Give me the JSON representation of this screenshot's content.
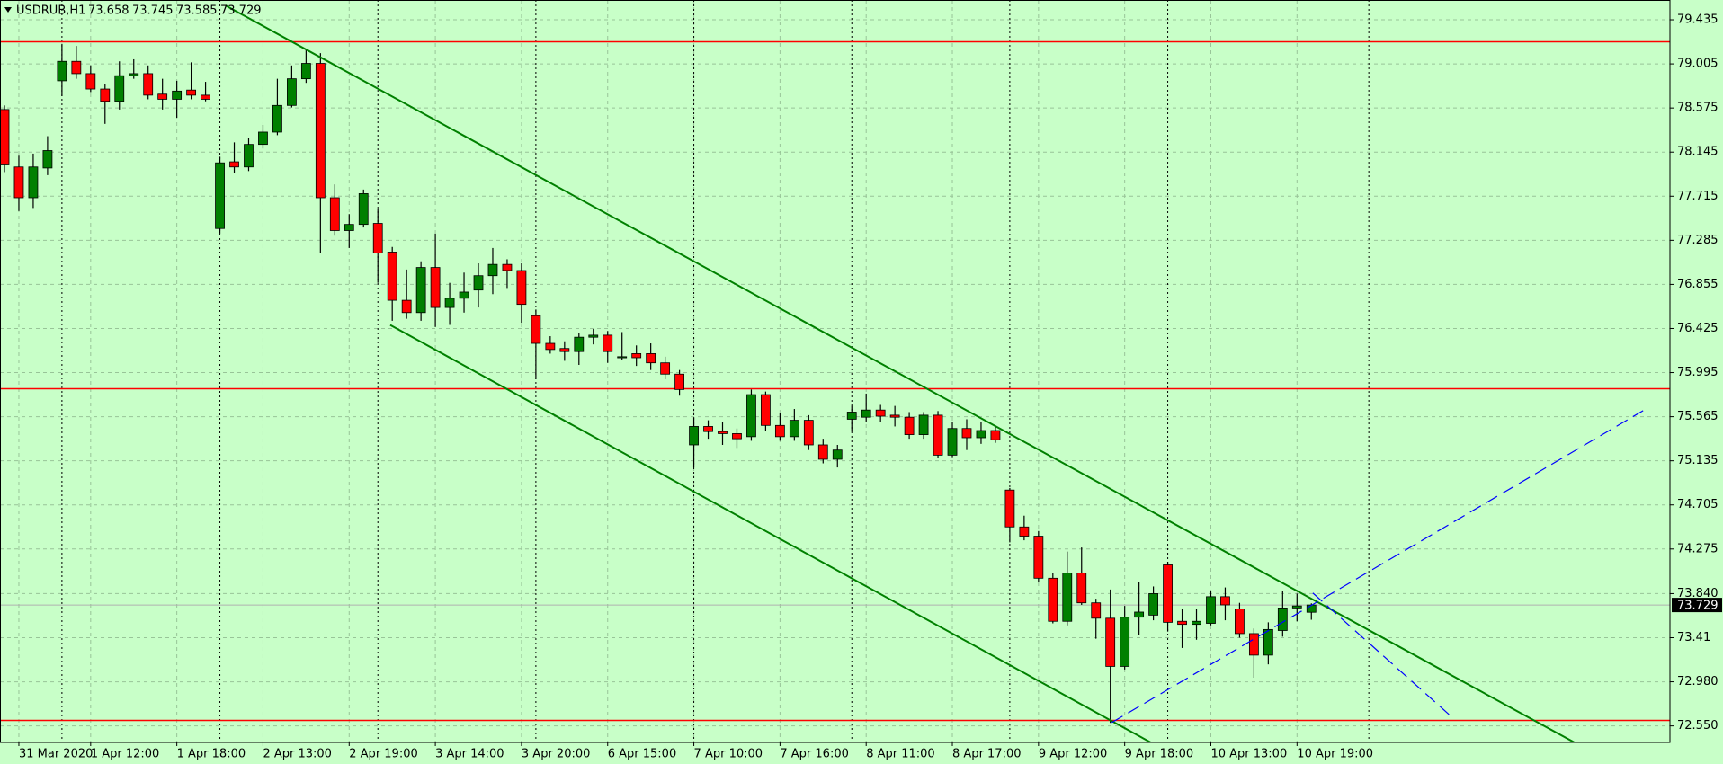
{
  "chart_data": {
    "type": "candlestick",
    "title": "USDRUB,H1",
    "categories": [
      null,
      "31 Mar 2020",
      null,
      null,
      null,
      null,
      "1 Apr 12:00",
      null,
      null,
      null,
      null,
      null,
      "1 Apr 18:00",
      null,
      null,
      null,
      null,
      null,
      "2 Apr 13:00",
      null,
      null,
      null,
      null,
      null,
      "2 Apr 19:00",
      null,
      null,
      null,
      null,
      null,
      "3 Apr 14:00",
      null,
      null,
      null,
      null,
      null,
      "3 Apr 20:00",
      null,
      null,
      null,
      null,
      null,
      "6 Apr 15:00",
      null,
      null,
      null,
      null,
      null,
      "7 Apr 10:00",
      null,
      null,
      null,
      null,
      null,
      "7 Apr 16:00",
      null,
      null,
      null,
      null,
      null,
      "8 Apr 11:00",
      null,
      null,
      null,
      null,
      null,
      "8 Apr 17:00",
      null,
      null,
      null,
      null,
      null,
      "9 Apr 12:00",
      null,
      null,
      null,
      null,
      null,
      "9 Apr 18:00",
      null,
      null,
      null,
      null,
      null,
      "10 Apr 13:00",
      null,
      null,
      null,
      null,
      null,
      "10 Apr 19:00",
      null
    ],
    "open": [
      78.56,
      78.0,
      77.7,
      77.99,
      78.84,
      79.03,
      78.91,
      78.76,
      78.64,
      78.89,
      78.91,
      78.71,
      78.66,
      78.75,
      78.7,
      77.4,
      78.05,
      78.0,
      78.22,
      78.34,
      78.6,
      78.86,
      79.01,
      77.7,
      77.38,
      77.44,
      77.45,
      77.17,
      76.7,
      76.58,
      77.02,
      76.63,
      76.72,
      76.8,
      76.94,
      77.05,
      76.99,
      76.55,
      76.28,
      76.23,
      76.2,
      76.34,
      76.36,
      76.14,
      76.18,
      76.18,
      76.09,
      75.98,
      75.29,
      75.47,
      75.42,
      75.4,
      75.37,
      75.78,
      75.48,
      75.37,
      75.53,
      75.29,
      75.15,
      75.54,
      75.56,
      75.63,
      75.58,
      75.56,
      75.39,
      75.58,
      75.19,
      75.45,
      75.36,
      75.43,
      74.85,
      74.49,
      74.4,
      73.99,
      73.57,
      74.04,
      73.75,
      73.6,
      73.13,
      73.61,
      73.63,
      74.12,
      73.57,
      73.54,
      73.55,
      73.81,
      73.69,
      73.45,
      73.24,
      73.48,
      73.7,
      73.658
    ],
    "high": [
      78.6,
      78.11,
      78.13,
      78.3,
      79.2,
      79.18,
      78.99,
      78.81,
      79.03,
      79.05,
      78.99,
      78.86,
      78.84,
      79.02,
      78.83,
      78.1,
      78.24,
      78.28,
      78.41,
      78.86,
      78.99,
      79.15,
      79.11,
      77.83,
      77.54,
      77.78,
      77.59,
      77.22,
      77.0,
      77.08,
      77.35,
      76.87,
      76.97,
      77.06,
      77.21,
      77.1,
      77.06,
      76.61,
      76.35,
      76.3,
      76.38,
      76.42,
      76.4,
      76.39,
      76.26,
      76.28,
      76.15,
      76.02,
      75.56,
      75.53,
      75.51,
      75.45,
      75.83,
      75.81,
      75.6,
      75.64,
      75.58,
      75.35,
      75.29,
      75.67,
      75.79,
      75.68,
      75.67,
      75.61,
      75.61,
      75.62,
      75.51,
      75.54,
      75.51,
      75.48,
      74.87,
      74.6,
      74.45,
      74.04,
      74.25,
      74.29,
      73.79,
      73.88,
      73.72,
      73.95,
      73.91,
      74.15,
      73.69,
      73.69,
      73.87,
      73.9,
      73.75,
      73.5,
      73.56,
      73.87,
      73.84,
      73.745
    ],
    "low": [
      77.95,
      77.57,
      77.6,
      77.92,
      78.69,
      78.86,
      78.73,
      78.42,
      78.56,
      78.86,
      78.66,
      78.56,
      78.48,
      78.66,
      78.64,
      77.35,
      77.94,
      77.96,
      78.18,
      78.31,
      78.58,
      78.82,
      77.16,
      77.33,
      77.21,
      77.41,
      76.87,
      76.5,
      76.52,
      76.5,
      76.44,
      76.46,
      76.58,
      76.63,
      76.76,
      76.82,
      76.48,
      75.93,
      76.18,
      76.11,
      76.07,
      76.27,
      76.09,
      76.12,
      76.06,
      76.02,
      75.93,
      75.77,
      75.07,
      75.35,
      75.29,
      75.26,
      75.33,
      75.43,
      75.33,
      75.33,
      75.24,
      75.11,
      75.07,
      75.42,
      75.51,
      75.51,
      75.47,
      75.35,
      75.35,
      75.16,
      75.17,
      75.24,
      75.3,
      75.31,
      74.34,
      74.36,
      73.95,
      73.55,
      73.53,
      73.73,
      73.4,
      72.58,
      73.1,
      73.44,
      73.58,
      73.47,
      73.31,
      73.39,
      73.53,
      73.58,
      73.41,
      73.02,
      73.15,
      73.42,
      73.57,
      73.585
    ],
    "close": [
      78.02,
      77.7,
      78.0,
      78.16,
      79.03,
      78.91,
      78.76,
      78.64,
      78.89,
      78.91,
      78.7,
      78.66,
      78.74,
      78.7,
      78.66,
      78.04,
      78.0,
      78.22,
      78.34,
      78.6,
      78.86,
      79.01,
      77.7,
      77.38,
      77.44,
      77.74,
      77.16,
      76.7,
      76.58,
      77.02,
      76.63,
      76.72,
      76.78,
      76.94,
      77.05,
      76.99,
      76.66,
      76.28,
      76.22,
      76.2,
      76.34,
      76.36,
      76.2,
      76.15,
      76.14,
      76.09,
      75.98,
      75.83,
      75.47,
      75.42,
      75.4,
      75.35,
      75.78,
      75.48,
      75.37,
      75.53,
      75.29,
      75.15,
      75.24,
      75.61,
      75.63,
      75.57,
      75.56,
      75.39,
      75.58,
      75.19,
      75.45,
      75.36,
      75.43,
      75.34,
      74.49,
      74.4,
      73.99,
      73.57,
      74.04,
      73.75,
      73.6,
      73.13,
      73.61,
      73.66,
      73.84,
      73.56,
      73.54,
      73.57,
      73.81,
      73.73,
      73.45,
      73.24,
      73.49,
      73.7,
      73.72,
      73.729
    ],
    "up_color": "#008000",
    "down_color": "#ff0000",
    "background": "#c8ffc8",
    "ylim": [
      72.389,
      79.628
    ],
    "yticks": [
      79.435,
      79.005,
      78.575,
      78.145,
      77.715,
      77.285,
      76.855,
      76.425,
      75.995,
      75.565,
      75.135,
      74.705,
      74.275,
      {
        "value": 73.84,
        "label": "73.840"
      },
      73.41,
      {
        "value": 72.98,
        "label": "72.980"
      },
      {
        "value": 72.55,
        "label": "72.550"
      }
    ],
    "grid": true,
    "day_separators": [
      4,
      15,
      26,
      37,
      48,
      59,
      70,
      81,
      95
    ],
    "hlines": [
      79.221,
      75.838,
      72.604
    ],
    "hline_color": "#ff0000",
    "trendlines": [
      {
        "color": "#008000",
        "dashed": false,
        "points": [
          [
            15.4,
            79.574
          ],
          [
            109.3,
            72.39
          ]
        ]
      },
      {
        "color": "#008000",
        "dashed": false,
        "points": [
          [
            26.86,
            76.459
          ],
          [
            79.8,
            72.39
          ]
        ]
      },
      {
        "color": "#0000ff",
        "dashed": true,
        "points": [
          [
            77.1,
            72.583
          ],
          [
            114.1,
            75.624
          ]
        ]
      },
      {
        "color": "#0000ff",
        "dashed": true,
        "points": [
          [
            91.1,
            73.846
          ],
          [
            100.7,
            72.647
          ]
        ]
      }
    ]
  }
}
